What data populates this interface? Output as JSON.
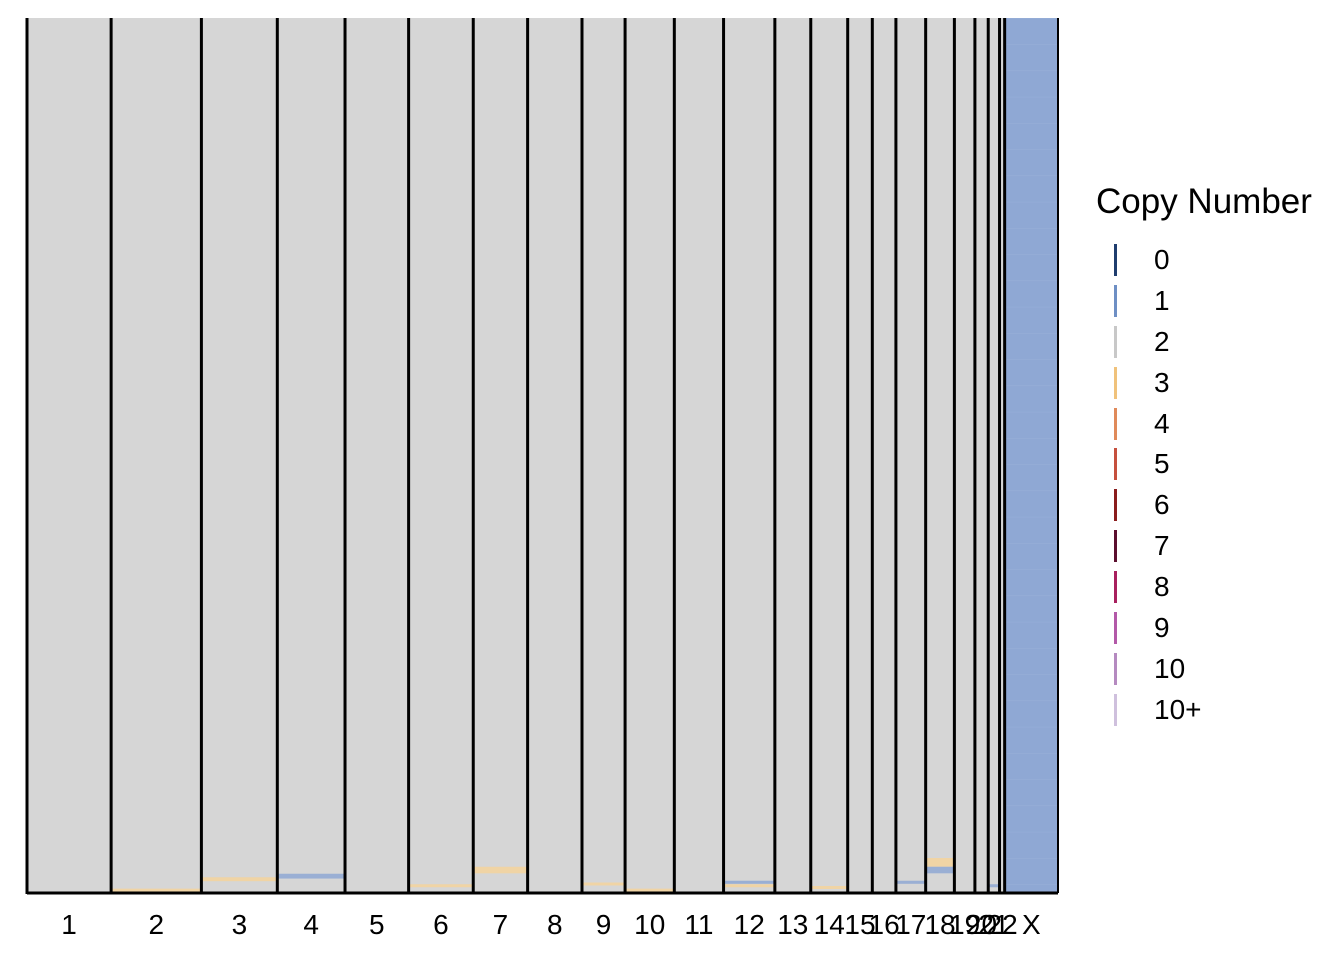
{
  "chart_data": {
    "type": "heatmap",
    "title": "",
    "xlabel": "",
    "ylabel": "",
    "x_categories": [
      "1",
      "2",
      "3",
      "4",
      "5",
      "6",
      "7",
      "8",
      "9",
      "10",
      "11",
      "12",
      "13",
      "14",
      "15",
      "16",
      "17",
      "18",
      "19",
      "20",
      "21",
      "22",
      "X"
    ],
    "chromosome_relative_widths": [
      82,
      88,
      74,
      66,
      62,
      63,
      53,
      53,
      42,
      48,
      48,
      50,
      35,
      36,
      24,
      23,
      29,
      28,
      20,
      13,
      11,
      5,
      52
    ],
    "baseline_copy_number": {
      "1": 2,
      "2": 2,
      "3": 2,
      "4": 2,
      "5": 2,
      "6": 2,
      "7": 2,
      "8": 2,
      "9": 2,
      "10": 2,
      "11": 2,
      "12": 2,
      "13": 2,
      "14": 2,
      "15": 2,
      "16": 2,
      "17": 2,
      "18": 2,
      "19": 2,
      "20": 2,
      "21": 2,
      "22": 2,
      "X": 1
    },
    "cell_count_rows": 100,
    "notable_alterations": [
      {
        "chromosome": "2",
        "copy_number": 3,
        "cells_fraction": 0.005
      },
      {
        "chromosome": "3",
        "copy_number": 3,
        "cells_fraction": 0.018
      },
      {
        "chromosome": "4",
        "copy_number": 1,
        "cells_fraction": 0.022
      },
      {
        "chromosome": "6",
        "copy_number": 3,
        "cells_fraction": 0.01
      },
      {
        "chromosome": "7",
        "copy_number": 3,
        "cells_fraction": 0.03
      },
      {
        "chromosome": "9",
        "copy_number": 3,
        "cells_fraction": 0.012
      },
      {
        "chromosome": "10",
        "copy_number": 3,
        "cells_fraction": 0.005
      },
      {
        "chromosome": "12",
        "copy_number": 1,
        "cells_fraction": 0.014
      },
      {
        "chromosome": "12",
        "copy_number": 3,
        "cells_fraction": 0.01
      },
      {
        "chromosome": "14",
        "copy_number": 3,
        "cells_fraction": 0.008
      },
      {
        "chromosome": "17",
        "copy_number": 1,
        "cells_fraction": 0.014
      },
      {
        "chromosome": "18",
        "copy_number": 3,
        "cells_fraction": 0.04
      },
      {
        "chromosome": "18",
        "copy_number": 1,
        "cells_fraction": 0.03
      },
      {
        "chromosome": "21",
        "copy_number": 1,
        "cells_fraction": 0.01
      }
    ],
    "legend": {
      "title": "Copy Number",
      "placement": "right",
      "entries": [
        {
          "label": "0",
          "color": "#1f3d6e"
        },
        {
          "label": "1",
          "color": "#6e8fc4"
        },
        {
          "label": "2",
          "color": "#c8c8c8"
        },
        {
          "label": "3",
          "color": "#f0c27b"
        },
        {
          "label": "4",
          "color": "#e08a5a"
        },
        {
          "label": "5",
          "color": "#c6503e"
        },
        {
          "label": "6",
          "color": "#8a1c1c"
        },
        {
          "label": "7",
          "color": "#5b0f2e"
        },
        {
          "label": "8",
          "color": "#a8205e"
        },
        {
          "label": "9",
          "color": "#b359a8"
        },
        {
          "label": "10",
          "color": "#b58ac0"
        },
        {
          "label": "10+",
          "color": "#cfc0dd"
        }
      ]
    },
    "cell_colors": {
      "1": "#8fa8d4",
      "2": "#d6d6d6",
      "3": "#f4d49c"
    }
  }
}
